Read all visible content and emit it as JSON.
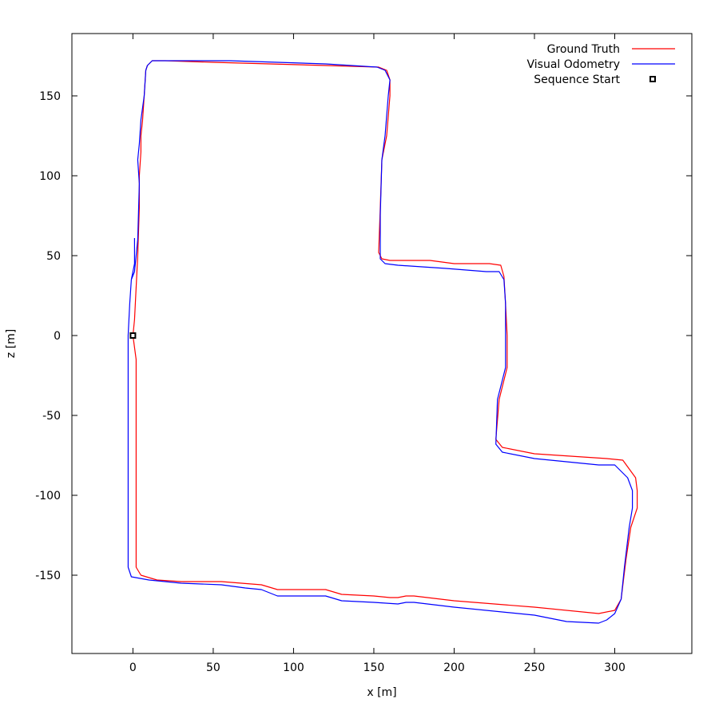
{
  "chart_data": {
    "type": "line",
    "xlabel": "x [m]",
    "ylabel": "z [m]",
    "xlim": [
      -38,
      348
    ],
    "ylim": [
      -199,
      189
    ],
    "x_ticks": [
      0,
      50,
      100,
      150,
      200,
      250,
      300
    ],
    "y_ticks": [
      -150,
      -100,
      -50,
      0,
      50,
      100,
      150
    ],
    "grid": false,
    "legend_position": "top-right",
    "legend": [
      "Ground Truth",
      "Visual Odometry",
      "Sequence Start"
    ],
    "series": [
      {
        "name": "Ground Truth",
        "color": "#ff0000",
        "points": [
          [
            0,
            0
          ],
          [
            2,
            -15
          ],
          [
            2,
            -40
          ],
          [
            2,
            -80
          ],
          [
            2,
            -120
          ],
          [
            2,
            -145
          ],
          [
            5,
            -150
          ],
          [
            15,
            -153
          ],
          [
            30,
            -154
          ],
          [
            55,
            -154
          ],
          [
            80,
            -156
          ],
          [
            90,
            -159
          ],
          [
            100,
            -159
          ],
          [
            120,
            -159
          ],
          [
            130,
            -162
          ],
          [
            150,
            -163
          ],
          [
            160,
            -164
          ],
          [
            165,
            -164
          ],
          [
            170,
            -163
          ],
          [
            175,
            -163
          ],
          [
            200,
            -166
          ],
          [
            250,
            -170
          ],
          [
            290,
            -174
          ],
          [
            300,
            -172
          ],
          [
            304,
            -165
          ],
          [
            307,
            -140
          ],
          [
            310,
            -120
          ],
          [
            314,
            -108
          ],
          [
            314,
            -97
          ],
          [
            313,
            -89
          ],
          [
            305,
            -78
          ],
          [
            295,
            -77
          ],
          [
            250,
            -74
          ],
          [
            230,
            -70
          ],
          [
            226,
            -65
          ],
          [
            228,
            -40
          ],
          [
            233,
            -20
          ],
          [
            233,
            0
          ],
          [
            232,
            20
          ],
          [
            231,
            37
          ],
          [
            229,
            44
          ],
          [
            222,
            45
          ],
          [
            200,
            45
          ],
          [
            185,
            47
          ],
          [
            170,
            47
          ],
          [
            160,
            47
          ],
          [
            155,
            48
          ],
          [
            153,
            52
          ],
          [
            154,
            80
          ],
          [
            155,
            110
          ],
          [
            158,
            125
          ],
          [
            160,
            150
          ],
          [
            160,
            160
          ],
          [
            158,
            166
          ],
          [
            153,
            168
          ],
          [
            120,
            169
          ],
          [
            50,
            171
          ],
          [
            20,
            172
          ],
          [
            12,
            172
          ],
          [
            9,
            169
          ],
          [
            8,
            166
          ],
          [
            7,
            150
          ],
          [
            6,
            135
          ],
          [
            5,
            125
          ],
          [
            5,
            115
          ],
          [
            4,
            100
          ],
          [
            4,
            80
          ],
          [
            3,
            50
          ],
          [
            2,
            30
          ],
          [
            1,
            10
          ],
          [
            0,
            0
          ]
        ]
      },
      {
        "name": "Visual Odometry",
        "color": "#0000ff",
        "points": [
          [
            1,
            61
          ],
          [
            1,
            45
          ],
          [
            -1,
            35
          ],
          [
            -2,
            20
          ],
          [
            -3,
            0
          ],
          [
            -3,
            -25
          ],
          [
            -3,
            -60
          ],
          [
            -3,
            -100
          ],
          [
            -3,
            -145
          ],
          [
            -1,
            -151
          ],
          [
            10,
            -153
          ],
          [
            30,
            -155
          ],
          [
            55,
            -156
          ],
          [
            70,
            -158
          ],
          [
            80,
            -159
          ],
          [
            90,
            -163
          ],
          [
            100,
            -163
          ],
          [
            120,
            -163
          ],
          [
            130,
            -166
          ],
          [
            150,
            -167
          ],
          [
            165,
            -168
          ],
          [
            170,
            -167
          ],
          [
            175,
            -167
          ],
          [
            200,
            -170
          ],
          [
            250,
            -175
          ],
          [
            270,
            -179
          ],
          [
            290,
            -180
          ],
          [
            295,
            -178
          ],
          [
            300,
            -174
          ],
          [
            304,
            -165
          ],
          [
            306,
            -145
          ],
          [
            309,
            -120
          ],
          [
            311,
            -108
          ],
          [
            311,
            -97
          ],
          [
            308,
            -89
          ],
          [
            300,
            -81
          ],
          [
            290,
            -81
          ],
          [
            250,
            -77
          ],
          [
            230,
            -73
          ],
          [
            226,
            -68
          ],
          [
            227,
            -40
          ],
          [
            232,
            -20
          ],
          [
            232,
            0
          ],
          [
            232,
            20
          ],
          [
            231,
            35
          ],
          [
            228,
            40
          ],
          [
            220,
            40
          ],
          [
            195,
            42
          ],
          [
            180,
            43
          ],
          [
            165,
            44
          ],
          [
            157,
            45
          ],
          [
            154,
            48
          ],
          [
            154,
            75
          ],
          [
            155,
            110
          ],
          [
            157,
            125
          ],
          [
            159,
            150
          ],
          [
            160,
            160
          ],
          [
            157,
            166
          ],
          [
            152,
            168
          ],
          [
            120,
            170
          ],
          [
            60,
            172
          ],
          [
            20,
            172
          ],
          [
            12,
            172
          ],
          [
            9,
            169
          ],
          [
            8,
            166
          ],
          [
            7,
            150
          ],
          [
            5,
            135
          ],
          [
            4,
            120
          ],
          [
            3,
            110
          ],
          [
            4,
            95
          ],
          [
            3,
            60
          ],
          [
            2,
            50
          ],
          [
            1,
            40
          ],
          [
            -1,
            35
          ]
        ]
      },
      {
        "name": "Sequence Start",
        "color": "#000000",
        "marker": "square",
        "points": [
          [
            0,
            0
          ]
        ]
      }
    ]
  }
}
